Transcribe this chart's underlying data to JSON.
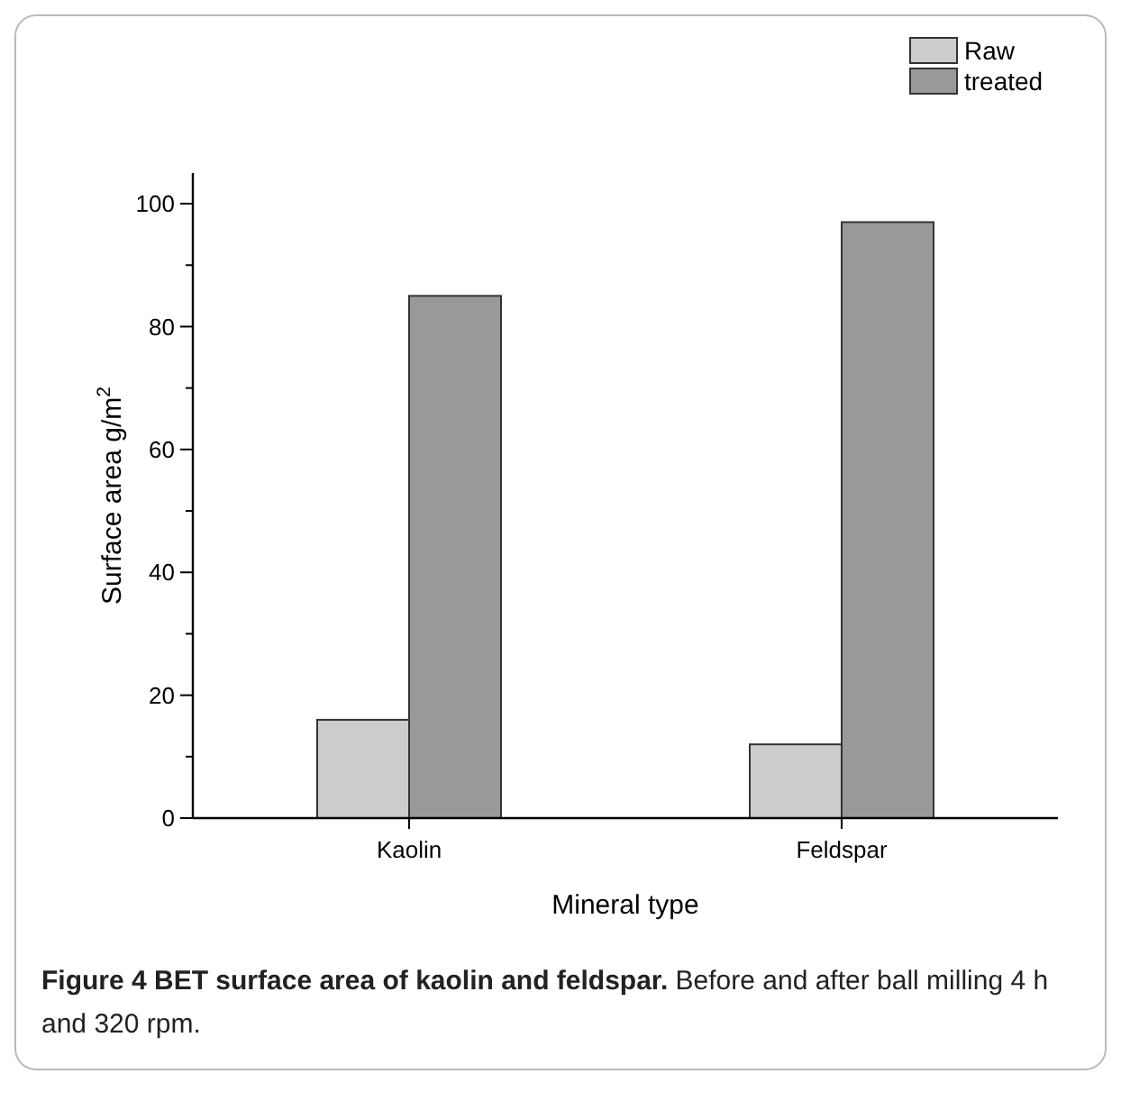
{
  "chart_data": {
    "type": "bar",
    "xlabel": "Mineral type",
    "ylabel": "Surface area g/m$^{2}$",
    "categories": [
      "Kaolin",
      "Feldspar"
    ],
    "series": [
      {
        "name": "Raw",
        "color": "#cccccc",
        "values": [
          16,
          12
        ]
      },
      {
        "name": "treated",
        "color": "#999999",
        "values": [
          85,
          97
        ]
      }
    ],
    "ylim": [
      0,
      105
    ],
    "yticks": [
      0,
      {
        "value": 10,
        "label": null
      },
      20,
      {
        "value": 30,
        "label": null
      },
      40,
      {
        "value": 50,
        "label": null
      },
      60,
      {
        "value": 70,
        "label": null
      },
      80,
      {
        "value": 90,
        "label": null
      },
      100
    ],
    "legend": "top right",
    "annotations": [
      "Figure 4 BET surface area of kaolin and feldspar.",
      "Before and after ball milling 4 h and 320 rpm."
    ]
  }
}
